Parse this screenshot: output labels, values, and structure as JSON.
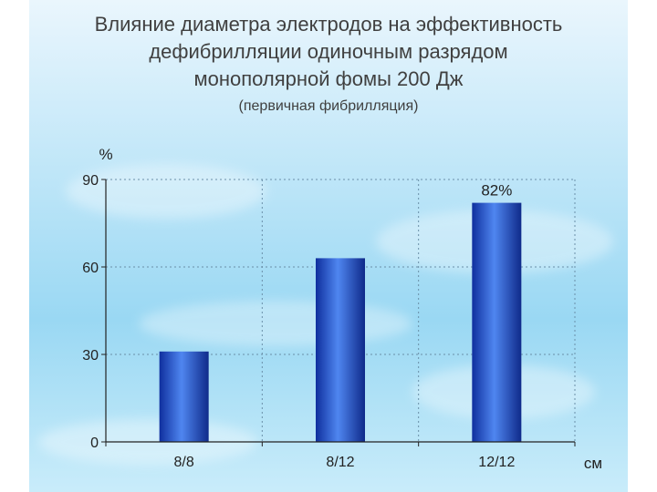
{
  "title": {
    "line1": "Влияние диаметра электродов на эффективность",
    "line2": "дефибрилляции одиночным разрядом",
    "line3": "монополярной фомы 200 Дж",
    "subtitle": "(первичная фибрилляция)"
  },
  "chart_data": {
    "type": "bar",
    "categories": [
      "8/8",
      "8/12",
      "12/12"
    ],
    "values": [
      31,
      63,
      82
    ],
    "data_labels": [
      "",
      "",
      "82%"
    ],
    "ylabel": "%",
    "xlabel": "см",
    "ylim": [
      0,
      90
    ],
    "yticks": [
      0,
      30,
      60,
      90
    ],
    "grid": true,
    "bar_color": "#1a3fc4",
    "bar_highlight": "#4f86f0"
  }
}
